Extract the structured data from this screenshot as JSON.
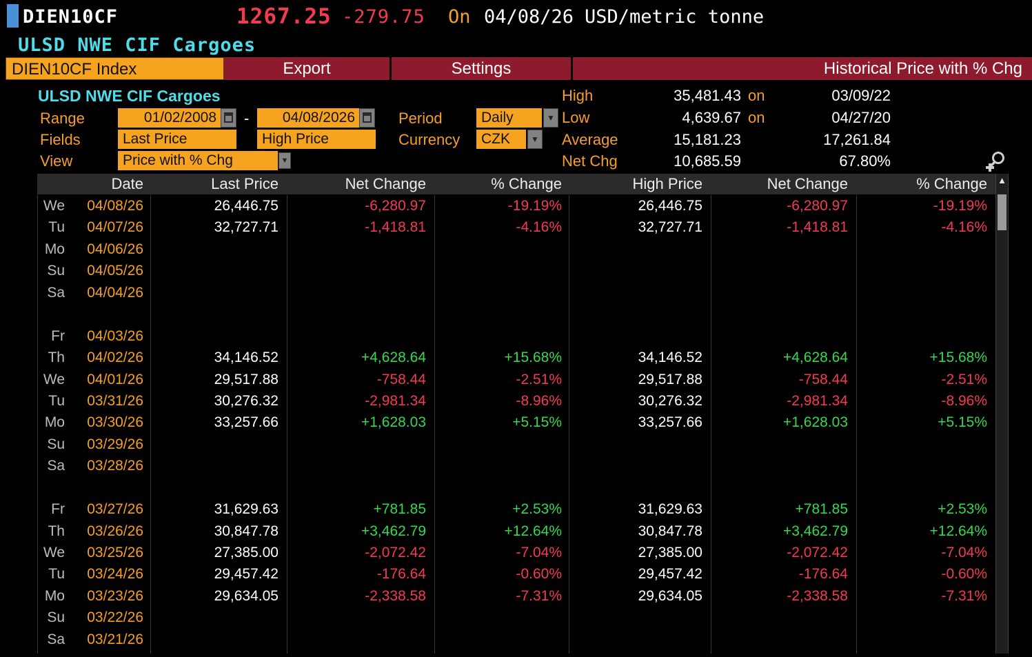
{
  "colors": {
    "amber": "#f6a41f",
    "label_orange": "#f49e2c",
    "toolbar_red": "#8e1b2d",
    "neg": "#f43a50",
    "pos": "#33d94f",
    "cyan": "#4fdbe8",
    "date_orange": "#f8a01e",
    "blue_marker": "#4a90d9"
  },
  "titlebar": {
    "ticker": "DIEN10CF",
    "last_price": "1267.25",
    "net_change": "-279.75",
    "on_label": "On",
    "price_date": "04/08/26",
    "unit": "USD/metric tonne",
    "security_name": "ULSD NWE CIF Cargoes"
  },
  "toolbar": {
    "tab_label": "DIEN10CF Index",
    "export_label": "Export",
    "settings_label": "Settings",
    "view_title": "Historical Price with % Chg"
  },
  "panel": {
    "security_title": "ULSD NWE CIF Cargoes",
    "range_label": "Range",
    "range_start": "01/02/2008",
    "range_dash": "-",
    "range_end": "04/08/2026",
    "period_label": "Period",
    "period_value": "Daily",
    "fields_label": "Fields",
    "field1_value": "Last Price",
    "field2_value": "High Price",
    "currency_label": "Currency",
    "currency_value": "CZK",
    "view_label": "View",
    "view_value": "Price with % Chg",
    "stats": [
      {
        "label": "High",
        "value": "35,481.43",
        "suffix": "on",
        "extra": "03/09/22"
      },
      {
        "label": "Low",
        "value": "4,639.67",
        "suffix": "on",
        "extra": "04/27/20"
      },
      {
        "label": "Average",
        "value": "15,181.23",
        "suffix": "",
        "extra": "17,261.84"
      },
      {
        "label": "Net Chg",
        "value": "10,685.59",
        "suffix": "",
        "extra": "67.80%"
      }
    ]
  },
  "icons": {
    "scroll_up": "▲",
    "dropdown": "▼"
  },
  "table": {
    "headers": [
      "Date",
      "Last Price",
      "Net Change",
      "% Change",
      "High Price",
      "Net Change",
      "% Change"
    ],
    "rows": [
      {
        "day": "We",
        "date": "04/08/26",
        "last": "26,446.75",
        "net": "-6,280.97",
        "pct": "-19.19%",
        "high": "26,446.75",
        "net2": "-6,280.97",
        "pct2": "-19.19%"
      },
      {
        "day": "Tu",
        "date": "04/07/26",
        "last": "32,727.71",
        "net": "-1,418.81",
        "pct": "-4.16%",
        "high": "32,727.71",
        "net2": "-1,418.81",
        "pct2": "-4.16%"
      },
      {
        "day": "Mo",
        "date": "04/06/26",
        "last": "",
        "net": "",
        "pct": "",
        "high": "",
        "net2": "",
        "pct2": ""
      },
      {
        "day": "Su",
        "date": "04/05/26",
        "last": "",
        "net": "",
        "pct": "",
        "high": "",
        "net2": "",
        "pct2": ""
      },
      {
        "day": "Sa",
        "date": "04/04/26",
        "last": "",
        "net": "",
        "pct": "",
        "high": "",
        "net2": "",
        "pct2": ""
      },
      null,
      {
        "day": "Fr",
        "date": "04/03/26",
        "last": "",
        "net": "",
        "pct": "",
        "high": "",
        "net2": "",
        "pct2": ""
      },
      {
        "day": "Th",
        "date": "04/02/26",
        "last": "34,146.52",
        "net": "+4,628.64",
        "pct": "+15.68%",
        "high": "34,146.52",
        "net2": "+4,628.64",
        "pct2": "+15.68%"
      },
      {
        "day": "We",
        "date": "04/01/26",
        "last": "29,517.88",
        "net": "-758.44",
        "pct": "-2.51%",
        "high": "29,517.88",
        "net2": "-758.44",
        "pct2": "-2.51%"
      },
      {
        "day": "Tu",
        "date": "03/31/26",
        "last": "30,276.32",
        "net": "-2,981.34",
        "pct": "-8.96%",
        "high": "30,276.32",
        "net2": "-2,981.34",
        "pct2": "-8.96%"
      },
      {
        "day": "Mo",
        "date": "03/30/26",
        "last": "33,257.66",
        "net": "+1,628.03",
        "pct": "+5.15%",
        "high": "33,257.66",
        "net2": "+1,628.03",
        "pct2": "+5.15%"
      },
      {
        "day": "Su",
        "date": "03/29/26",
        "last": "",
        "net": "",
        "pct": "",
        "high": "",
        "net2": "",
        "pct2": ""
      },
      {
        "day": "Sa",
        "date": "03/28/26",
        "last": "",
        "net": "",
        "pct": "",
        "high": "",
        "net2": "",
        "pct2": ""
      },
      null,
      {
        "day": "Fr",
        "date": "03/27/26",
        "last": "31,629.63",
        "net": "+781.85",
        "pct": "+2.53%",
        "high": "31,629.63",
        "net2": "+781.85",
        "pct2": "+2.53%"
      },
      {
        "day": "Th",
        "date": "03/26/26",
        "last": "30,847.78",
        "net": "+3,462.79",
        "pct": "+12.64%",
        "high": "30,847.78",
        "net2": "+3,462.79",
        "pct2": "+12.64%"
      },
      {
        "day": "We",
        "date": "03/25/26",
        "last": "27,385.00",
        "net": "-2,072.42",
        "pct": "-7.04%",
        "high": "27,385.00",
        "net2": "-2,072.42",
        "pct2": "-7.04%"
      },
      {
        "day": "Tu",
        "date": "03/24/26",
        "last": "29,457.42",
        "net": "-176.64",
        "pct": "-0.60%",
        "high": "29,457.42",
        "net2": "-176.64",
        "pct2": "-0.60%"
      },
      {
        "day": "Mo",
        "date": "03/23/26",
        "last": "29,634.05",
        "net": "-2,338.58",
        "pct": "-7.31%",
        "high": "29,634.05",
        "net2": "-2,338.58",
        "pct2": "-7.31%"
      },
      {
        "day": "Su",
        "date": "03/22/26",
        "last": "",
        "net": "",
        "pct": "",
        "high": "",
        "net2": "",
        "pct2": ""
      },
      {
        "day": "Sa",
        "date": "03/21/26",
        "last": "",
        "net": "",
        "pct": "",
        "high": "",
        "net2": "",
        "pct2": ""
      }
    ]
  }
}
